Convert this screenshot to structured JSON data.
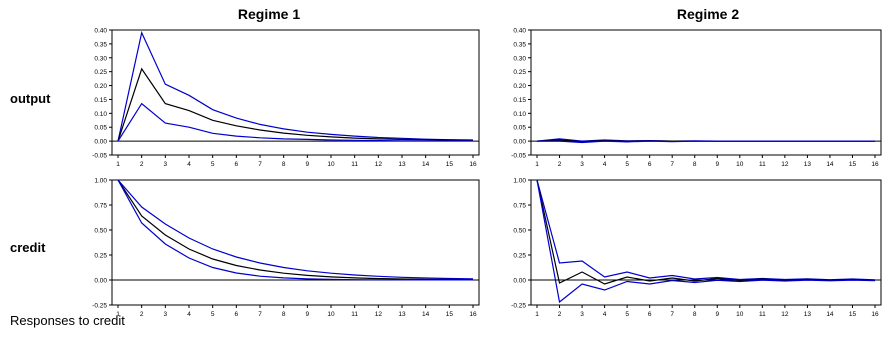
{
  "figure": {
    "regime_titles": [
      "Regime 1",
      "Regime 2"
    ],
    "row_labels": [
      "output",
      "credit"
    ],
    "footer": "Responses to credit"
  },
  "style": {
    "median_color": "#000000",
    "band_color": "#0000cc",
    "zero_line": true
  },
  "chart_data": [
    {
      "type": "line",
      "title": "Regime 1",
      "row": "output",
      "x": [
        1,
        2,
        3,
        4,
        5,
        6,
        7,
        8,
        9,
        10,
        11,
        12,
        13,
        14,
        15,
        16
      ],
      "ylim": [
        -0.05,
        0.4
      ],
      "yticks": [
        "-0.05",
        "0.00",
        "0.05",
        "0.10",
        "0.15",
        "0.20",
        "0.25",
        "0.30",
        "0.35",
        "0.40"
      ],
      "series": [
        {
          "values": [
            0,
            0.39,
            0.205,
            0.165,
            0.113,
            0.083,
            0.06,
            0.044,
            0.032,
            0.024,
            0.018,
            0.013,
            0.01,
            0.007,
            0.005,
            0.004
          ]
        },
        {
          "values": [
            0,
            0.26,
            0.135,
            0.11,
            0.075,
            0.055,
            0.04,
            0.029,
            0.021,
            0.015,
            0.011,
            0.008,
            0.006,
            0.005,
            0.004,
            0.003
          ]
        },
        {
          "values": [
            0,
            0.135,
            0.065,
            0.05,
            0.028,
            0.018,
            0.012,
            0.008,
            0.006,
            0.004,
            0.003,
            0.002,
            0.001,
            0.001,
            0.001,
            0.001
          ]
        }
      ]
    },
    {
      "type": "line",
      "title": "Regime 2",
      "row": "output",
      "x": [
        1,
        2,
        3,
        4,
        5,
        6,
        7,
        8,
        9,
        10,
        11,
        12,
        13,
        14,
        15,
        16
      ],
      "ylim": [
        -0.05,
        0.4
      ],
      "yticks": [
        "-0.05",
        "0.00",
        "0.05",
        "0.10",
        "0.15",
        "0.20",
        "0.25",
        "0.30",
        "0.35",
        "0.40"
      ],
      "series": [
        {
          "values": [
            0,
            0.008,
            0.0,
            0.004,
            0.001,
            0.002,
            0.0,
            0.001,
            0.0,
            0.0,
            0.0,
            0.0,
            0.0,
            0.0,
            0.0,
            0.0
          ]
        },
        {
          "values": [
            0,
            0.004,
            -0.002,
            0.002,
            -0.001,
            0.001,
            0.0,
            0.0,
            0.0,
            0.0,
            0.0,
            0.0,
            0.0,
            0.0,
            0.0,
            0.0
          ]
        },
        {
          "values": [
            0,
            0.0,
            -0.005,
            0.0,
            -0.003,
            0.0,
            -0.002,
            0.0,
            0.0,
            0.0,
            0.0,
            0.0,
            0.0,
            0.0,
            0.0,
            0.0
          ]
        }
      ]
    },
    {
      "type": "line",
      "title": "Regime 1",
      "row": "credit",
      "x": [
        1,
        2,
        3,
        4,
        5,
        6,
        7,
        8,
        9,
        10,
        11,
        12,
        13,
        14,
        15,
        16
      ],
      "ylim": [
        -0.25,
        1.0
      ],
      "yticks": [
        "-0.25",
        "0.00",
        "0.25",
        "0.50",
        "0.75",
        "1.00"
      ],
      "series": [
        {
          "values": [
            1.0,
            0.73,
            0.56,
            0.42,
            0.31,
            0.23,
            0.17,
            0.125,
            0.092,
            0.068,
            0.05,
            0.037,
            0.027,
            0.02,
            0.015,
            0.011
          ]
        },
        {
          "values": [
            1.0,
            0.64,
            0.45,
            0.31,
            0.21,
            0.145,
            0.1,
            0.068,
            0.046,
            0.031,
            0.021,
            0.014,
            0.01,
            0.007,
            0.005,
            0.003
          ]
        },
        {
          "values": [
            1.0,
            0.57,
            0.36,
            0.22,
            0.125,
            0.07,
            0.038,
            0.021,
            0.011,
            0.006,
            0.003,
            0.002,
            0.001,
            0.001,
            0.001,
            0.001
          ]
        }
      ]
    },
    {
      "type": "line",
      "title": "Regime 2",
      "row": "credit",
      "x": [
        1,
        2,
        3,
        4,
        5,
        6,
        7,
        8,
        9,
        10,
        11,
        12,
        13,
        14,
        15,
        16
      ],
      "ylim": [
        -0.25,
        1.0
      ],
      "yticks": [
        "-0.25",
        "0.00",
        "0.25",
        "0.50",
        "0.75",
        "1.00"
      ],
      "series": [
        {
          "values": [
            1.0,
            0.17,
            0.19,
            0.03,
            0.08,
            0.02,
            0.045,
            0.01,
            0.025,
            0.005,
            0.015,
            0.005,
            0.012,
            0.003,
            0.01,
            0.002
          ]
        },
        {
          "values": [
            1.0,
            -0.03,
            0.08,
            -0.04,
            0.03,
            -0.01,
            0.02,
            -0.01,
            0.015,
            -0.005,
            0.01,
            -0.003,
            0.007,
            -0.002,
            0.005,
            -0.002
          ]
        },
        {
          "values": [
            1.0,
            -0.22,
            -0.04,
            -0.1,
            -0.015,
            -0.04,
            -0.005,
            -0.025,
            -0.003,
            -0.015,
            -0.002,
            -0.01,
            -0.002,
            -0.008,
            -0.001,
            -0.006
          ]
        }
      ]
    }
  ]
}
